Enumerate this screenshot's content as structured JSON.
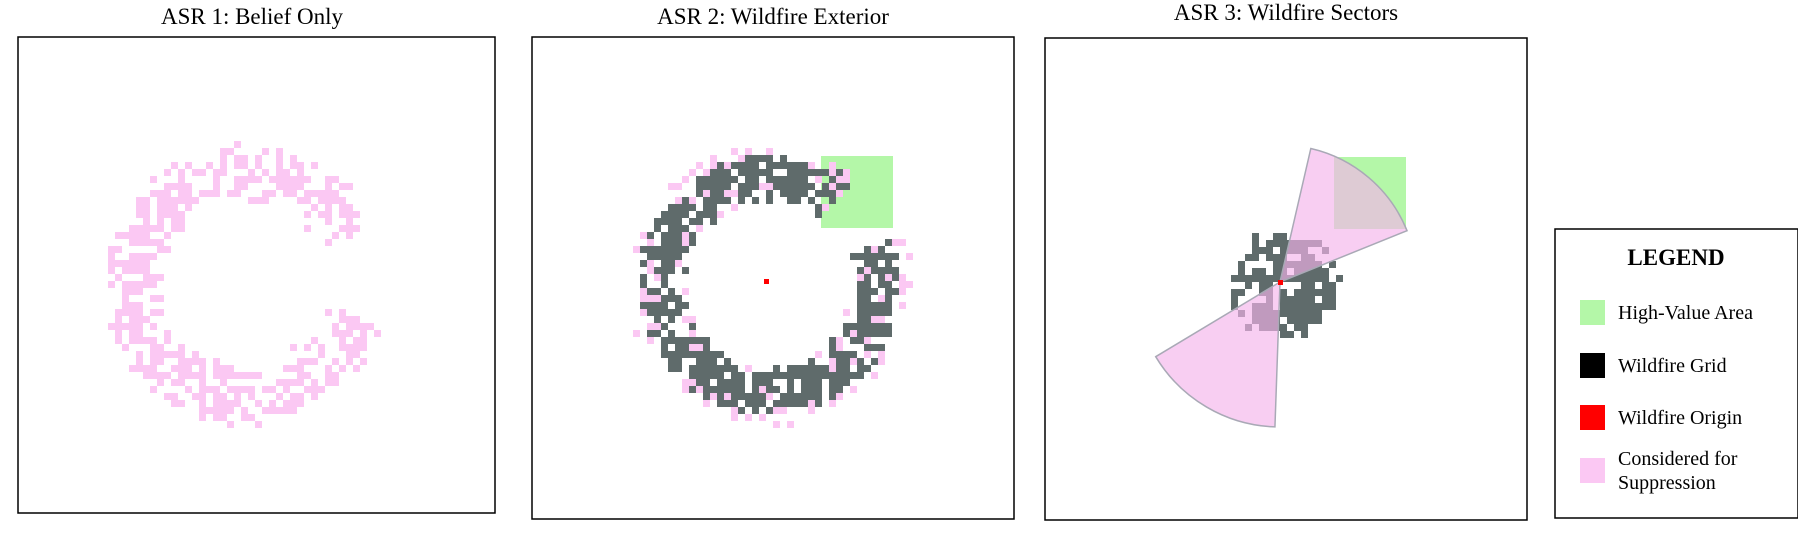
{
  "panels": [
    {
      "title": "ASR 1: Belief Only"
    },
    {
      "title": "ASR 2: Wildfire Exterior"
    },
    {
      "title": "ASR 3: Wildfire Sectors"
    }
  ],
  "legend": {
    "title": "LEGEND",
    "items": [
      {
        "label": "High-Value Area",
        "color": "#b4f7a8"
      },
      {
        "label": "Wildfire Grid",
        "color": "#000000"
      },
      {
        "label": "Wildfire Origin",
        "color": "#ff0000"
      },
      {
        "label": "Considered for Suppression",
        "color": "#fbc8f3"
      }
    ]
  }
}
